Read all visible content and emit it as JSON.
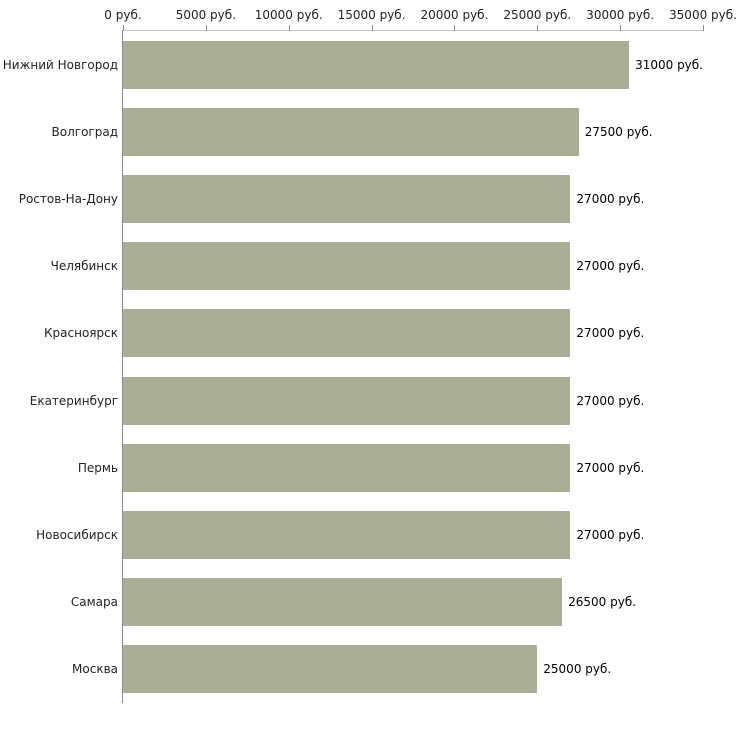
{
  "chart_data": {
    "type": "bar",
    "orientation": "horizontal",
    "title": "",
    "xlabel": "",
    "ylabel": "",
    "categories": [
      "Нижний Новгород",
      "Волгоград",
      "Ростов-На-Дону",
      "Челябинск",
      "Красноярск",
      "Екатеринбург",
      "Пермь",
      "Новосибирск",
      "Самара",
      "Москва"
    ],
    "values": [
      31000,
      27500,
      27000,
      27000,
      27000,
      27000,
      27000,
      27000,
      26500,
      25000
    ],
    "value_labels": [
      "31000 руб.",
      "27500 руб.",
      "27000 руб.",
      "27000 руб.",
      "27000 руб.",
      "27000 руб.",
      "27000 руб.",
      "27000 руб.",
      "26500 руб.",
      "25000 руб."
    ],
    "x_ticks": [
      0,
      5000,
      10000,
      15000,
      20000,
      25000,
      30000,
      35000
    ],
    "x_tick_labels": [
      "0 руб.",
      "5000 руб.",
      "10000 руб.",
      "15000 руб.",
      "20000 руб.",
      "25000 руб.",
      "30000 руб.",
      "35000 руб."
    ],
    "xlim": [
      0,
      35000
    ],
    "grid": false,
    "legend_position": "none",
    "bar_color": "#a9ae95",
    "axis_line_color": "#8a8a8a",
    "top_axis_line_color": "#c6c6c6"
  }
}
